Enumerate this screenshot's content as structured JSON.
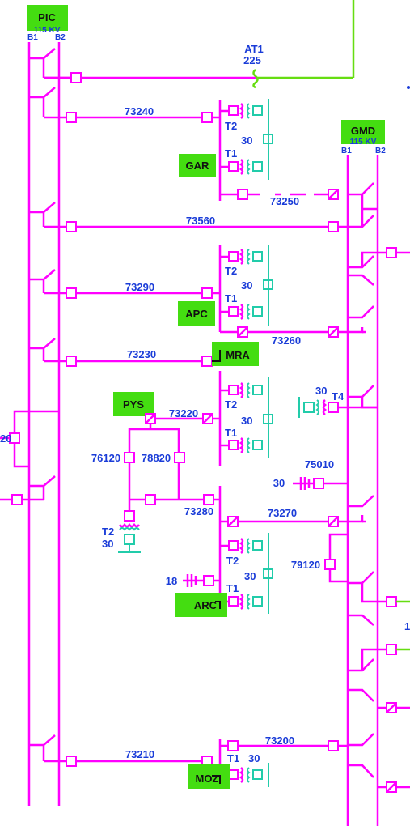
{
  "diagram": {
    "substations": {
      "pic": {
        "name": "PIC",
        "voltage": "115 KV",
        "bus1": "B1",
        "bus2": "B2"
      },
      "gmd": {
        "name": "GMD",
        "voltage": "115 KV",
        "bus1": "B1",
        "bus2": "B2"
      },
      "gar": {
        "name": "GAR"
      },
      "apc": {
        "name": "APC"
      },
      "mra": {
        "name": "MRA"
      },
      "pys": {
        "name": "PYS"
      },
      "arc": {
        "name": "ARC"
      },
      "moz": {
        "name": "MOZ"
      }
    },
    "labels": {
      "at1_name": "AT1",
      "at1_value": "225",
      "b73240": "73240",
      "b73250": "73250",
      "b73560": "73560",
      "b73290": "73290",
      "b73260": "73260",
      "b73230": "73230",
      "b73220": "73220",
      "b76120": "76120",
      "b78820": "78820",
      "b73280": "73280",
      "b73270": "73270",
      "b75010": "75010",
      "b79120": "79120",
      "b73210": "73210",
      "b73200": "73200",
      "left_partial": "20",
      "right_partial": "1"
    },
    "transformers": {
      "gar_t2": "T2",
      "gar_t1": "T1",
      "gar_rating": "30",
      "apc_t2": "T2",
      "apc_t1": "T1",
      "apc_rating": "30",
      "mra_t2": "T2",
      "mra_t1": "T1",
      "mra_rating": "30",
      "gmd_t4": "T4",
      "gmd_t4_rating": "30",
      "pys_t2": "T2",
      "pys_t2_rating": "30",
      "arc_t2": "T2",
      "arc_t1": "T1",
      "arc_rating": "30",
      "moz_t1": "T1",
      "moz_rating": "30"
    },
    "capacitors": {
      "gmd_cap": "30",
      "arc_cap": "18"
    }
  },
  "colors": {
    "line_115kv": "#ff00ff",
    "line_other": "#66dd11",
    "transformer": "#22ccaa",
    "label_text": "#1a3cd8",
    "substation_fill": "#44dd11"
  }
}
